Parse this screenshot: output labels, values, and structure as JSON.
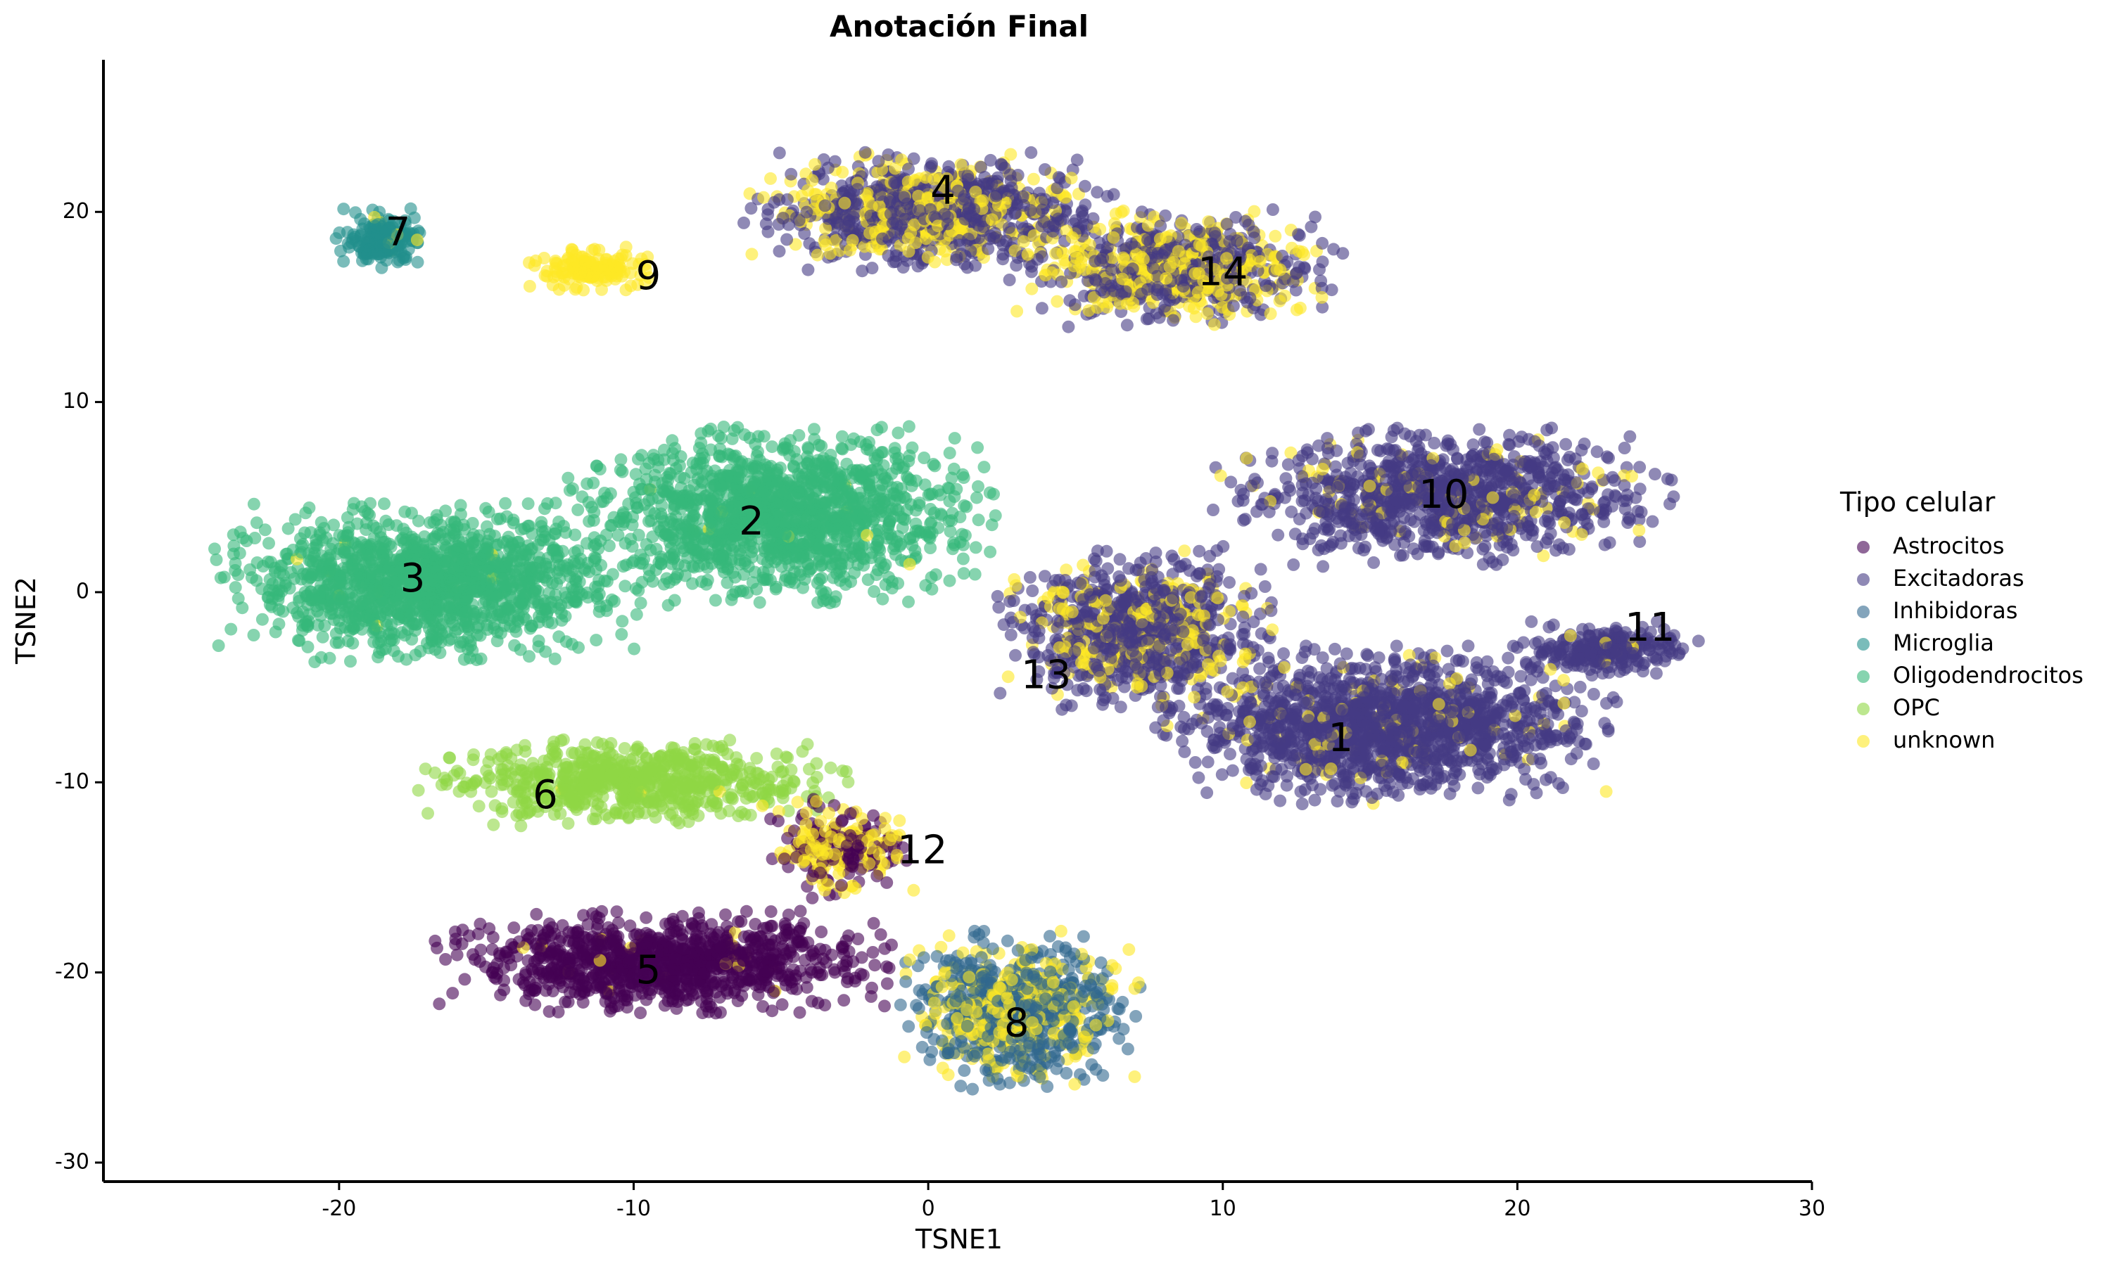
{
  "chart_data": {
    "type": "scatter",
    "title": "Anotación Final",
    "xlabel": "TSNE1",
    "ylabel": "TSNE2",
    "xlim": [
      -28,
      30
    ],
    "ylim": [
      -31,
      28
    ],
    "xticks": [
      -20,
      -10,
      0,
      10,
      20,
      30
    ],
    "yticks": [
      -30,
      -20,
      -10,
      0,
      10,
      20
    ],
    "xtick_labels": [
      "-20",
      "-10",
      "0",
      "10",
      "20",
      "30"
    ],
    "ytick_labels": [
      "-30",
      "-20",
      "-10",
      "0",
      "10",
      "20"
    ],
    "grid": false,
    "legend": {
      "title": "Tipo celular",
      "position": "right",
      "entries": [
        {
          "name": "Astrocitos",
          "color": "#440154"
        },
        {
          "name": "Excitadoras",
          "color": "#443A83"
        },
        {
          "name": "Inhibidoras",
          "color": "#31688E"
        },
        {
          "name": "Microglia",
          "color": "#21908C"
        },
        {
          "name": "Oligodendrocitos",
          "color": "#35B779"
        },
        {
          "name": "OPC",
          "color": "#8FD744"
        },
        {
          "name": "unknown",
          "color": "#FDE725"
        }
      ]
    },
    "clusters": [
      {
        "id": "1",
        "label_x": 14.0,
        "label_y": -7.8,
        "type": "Excitadoras",
        "center": [
          15.5,
          -7.0
        ],
        "spread": [
          7.5,
          4.0
        ],
        "n": 1500,
        "unknown_frac": 0.06
      },
      {
        "id": "2",
        "label_x": -6.0,
        "label_y": 3.6,
        "type": "Oligodendrocitos",
        "center": [
          -5.0,
          4.0
        ],
        "spread": [
          7.0,
          4.5
        ],
        "n": 1400,
        "unknown_frac": 0.01
      },
      {
        "id": "3",
        "label_x": -17.5,
        "label_y": 0.6,
        "type": "Oligodendrocitos",
        "center": [
          -17.0,
          0.5
        ],
        "spread": [
          7.0,
          4.0
        ],
        "n": 1400,
        "unknown_frac": 0.005
      },
      {
        "id": "4",
        "label_x": 0.5,
        "label_y": 21.0,
        "type": "Excitadoras",
        "center": [
          0.0,
          20.0
        ],
        "spread": [
          6.0,
          3.0
        ],
        "n": 1000,
        "unknown_frac": 0.35
      },
      {
        "id": "5",
        "label_x": -9.5,
        "label_y": -20.0,
        "type": "Astrocitos",
        "center": [
          -9.0,
          -19.5
        ],
        "spread": [
          7.5,
          2.6
        ],
        "n": 1000,
        "unknown_frac": 0.02
      },
      {
        "id": "6",
        "label_x": -13.0,
        "label_y": -10.8,
        "type": "OPC",
        "center": [
          -10.0,
          -10.0
        ],
        "spread": [
          7.0,
          2.2
        ],
        "n": 700,
        "unknown_frac": 0.01
      },
      {
        "id": "7",
        "label_x": -18.0,
        "label_y": 18.8,
        "type": "Microglia",
        "center": [
          -18.5,
          18.5
        ],
        "spread": [
          1.6,
          1.6
        ],
        "n": 180,
        "unknown_frac": 0.05
      },
      {
        "id": "8",
        "label_x": 3.0,
        "label_y": -22.8,
        "type": "Inhibidoras",
        "center": [
          3.0,
          -22.0
        ],
        "spread": [
          4.0,
          4.0
        ],
        "n": 800,
        "unknown_frac": 0.35
      },
      {
        "id": "9",
        "label_x": -9.5,
        "label_y": 16.5,
        "type": "unknown",
        "center": [
          -11.5,
          17.0
        ],
        "spread": [
          2.0,
          1.1
        ],
        "n": 160,
        "unknown_frac": 1.0
      },
      {
        "id": "10",
        "label_x": 17.5,
        "label_y": 5.0,
        "type": "Excitadoras",
        "center": [
          17.5,
          5.0
        ],
        "spread": [
          7.5,
          3.5
        ],
        "n": 1000,
        "unknown_frac": 0.12
      },
      {
        "id": "11",
        "label_x": 24.5,
        "label_y": -2.0,
        "type": "Excitadoras",
        "center": [
          23.0,
          -3.0
        ],
        "spread": [
          3.0,
          1.4
        ],
        "n": 250,
        "unknown_frac": 0.02
      },
      {
        "id": "12",
        "label_x": -0.2,
        "label_y": -13.7,
        "type": "Astrocitos",
        "center": [
          -3.0,
          -13.5
        ],
        "spread": [
          2.5,
          2.5
        ],
        "n": 250,
        "unknown_frac": 0.5
      },
      {
        "id": "13",
        "label_x": 4.0,
        "label_y": -4.5,
        "type": "Excitadoras",
        "center": [
          7.0,
          -2.0
        ],
        "spread": [
          4.5,
          4.0
        ],
        "n": 900,
        "unknown_frac": 0.3
      },
      {
        "id": "14",
        "label_x": 10.0,
        "label_y": 16.7,
        "type": "Excitadoras",
        "center": [
          8.5,
          17.0
        ],
        "spread": [
          5.5,
          3.0
        ],
        "n": 800,
        "unknown_frac": 0.45
      }
    ]
  }
}
